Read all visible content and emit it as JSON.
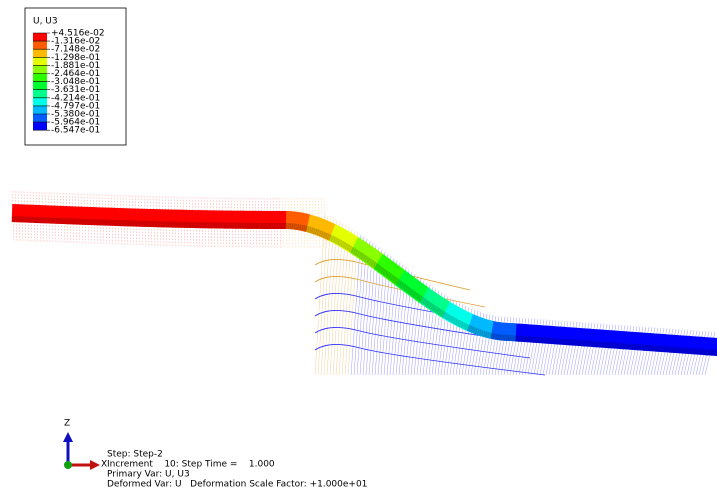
{
  "legend": {
    "title": "U, U3",
    "labels": [
      "+4.516e-02",
      "-1.316e-02",
      "-7.148e-02",
      "-1.298e-01",
      "-1.881e-01",
      "-2.464e-01",
      "-3.048e-01",
      "-3.631e-01",
      "-4.214e-01",
      "-4.797e-01",
      "-5.380e-01",
      "-5.964e-01",
      "-6.547e-01"
    ],
    "colors": [
      "#ff0000",
      "#ff5d00",
      "#ffb900",
      "#e3ff00",
      "#8aff00",
      "#2eff00",
      "#00ff2e",
      "#00ff8b",
      "#00ffe8",
      "#00b9ff",
      "#005dff",
      "#0000ff"
    ]
  },
  "triad": {
    "z": "Z",
    "x": "X"
  },
  "info": [
    "Step: Step-2",
    "Increment    10: Step Time =    1.000",
    "Primary Var: U, U3",
    "Deformed Var: U   Deformation Scale Factor: +1.000e+01"
  ]
}
